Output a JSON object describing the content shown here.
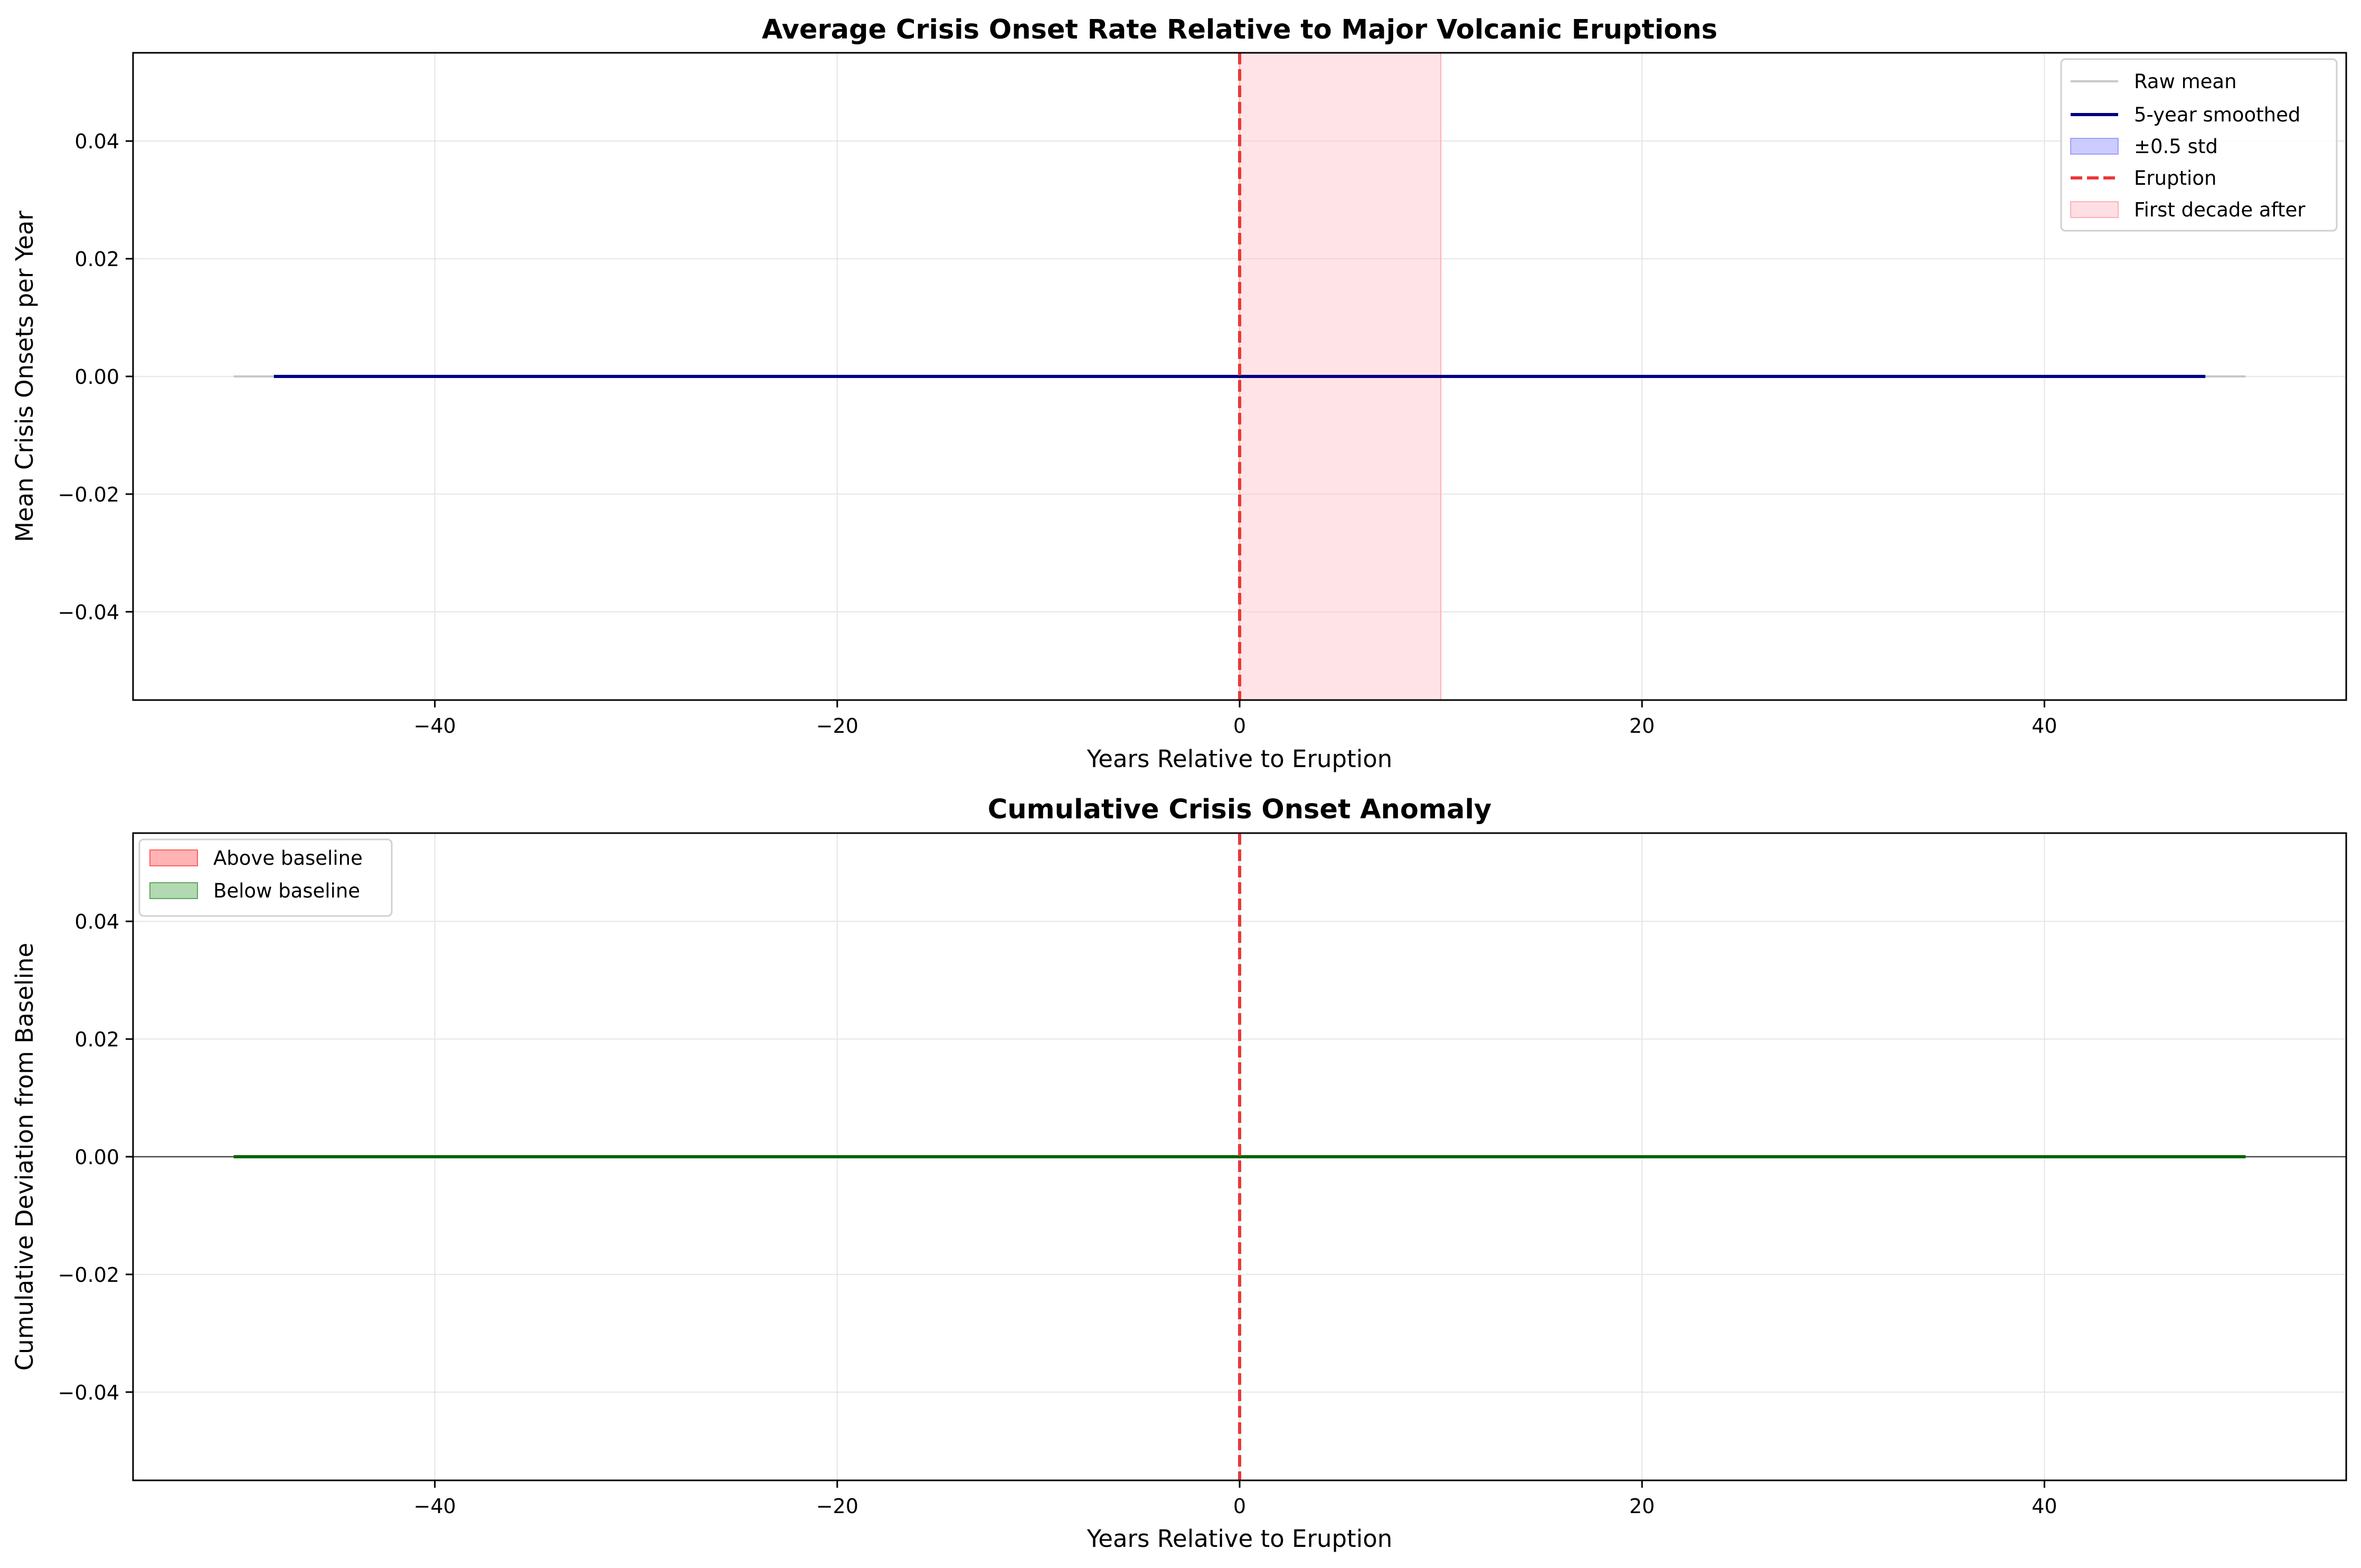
{
  "chart_data": [
    {
      "type": "line",
      "title": "Average Crisis Onset Rate Relative to Major Volcanic Eruptions",
      "xlabel": "Years Relative to Eruption",
      "ylabel": "Mean Crisis Onsets per Year",
      "xlim": [
        -55,
        55
      ],
      "ylim": [
        -0.055,
        0.055
      ],
      "xticks": [
        -40,
        -20,
        0,
        20,
        40
      ],
      "yticks": [
        -0.04,
        -0.02,
        0.0,
        0.02,
        0.04
      ],
      "xtick_labels": [
        "−40",
        "−20",
        "0",
        "20",
        "40"
      ],
      "ytick_labels": [
        "−0.04",
        "−0.02",
        "0.00",
        "0.02",
        "0.04"
      ],
      "grid": true,
      "legend_position": "top-right",
      "series": [
        {
          "name": "Raw mean",
          "color": "#c8c8c8",
          "style": "solid",
          "x": [
            -50,
            50
          ],
          "y": [
            0,
            0
          ]
        },
        {
          "name": "5-year smoothed",
          "color": "#00007f",
          "style": "solid",
          "x": [
            -48,
            48
          ],
          "y": [
            0,
            0
          ]
        },
        {
          "name": "±0.5 std",
          "color": "#0000ff",
          "style": "band",
          "x": [
            -48,
            48
          ],
          "y_low": [
            0,
            0
          ],
          "y_high": [
            0,
            0
          ]
        }
      ],
      "vline": {
        "name": "Eruption",
        "x": 0,
        "color": "#e8393b",
        "style": "dashed"
      },
      "span": {
        "name": "First decade after",
        "x0": 0,
        "x1": 10,
        "color": "#ffc0c8"
      },
      "legend": [
        "Raw mean",
        "5-year smoothed",
        "±0.5 std",
        "Eruption",
        "First decade after"
      ]
    },
    {
      "type": "area",
      "title": "Cumulative Crisis Onset Anomaly",
      "xlabel": "Years Relative to Eruption",
      "ylabel": "Cumulative Deviation from Baseline",
      "xlim": [
        -55,
        55
      ],
      "ylim": [
        -0.055,
        0.055
      ],
      "xticks": [
        -40,
        -20,
        0,
        20,
        40
      ],
      "yticks": [
        -0.04,
        -0.02,
        0.0,
        0.02,
        0.04
      ],
      "xtick_labels": [
        "−40",
        "−20",
        "0",
        "20",
        "40"
      ],
      "ytick_labels": [
        "−0.04",
        "−0.02",
        "0.00",
        "0.02",
        "0.04"
      ],
      "grid": true,
      "legend_position": "top-left",
      "series": [
        {
          "name": "Above baseline",
          "color": "#ff8080",
          "style": "fill_above"
        },
        {
          "name": "Below baseline",
          "color": "#7fbf7f",
          "style": "fill_below"
        },
        {
          "name": "",
          "color": "#006400",
          "style": "solid",
          "x": [
            -50,
            50
          ],
          "y": [
            0,
            0
          ]
        }
      ],
      "hline": {
        "y": 0,
        "color": "#000000"
      },
      "vline": {
        "x": 0,
        "color": "#e8393b",
        "style": "dashed"
      },
      "legend": [
        "Above baseline",
        "Below baseline"
      ]
    }
  ]
}
